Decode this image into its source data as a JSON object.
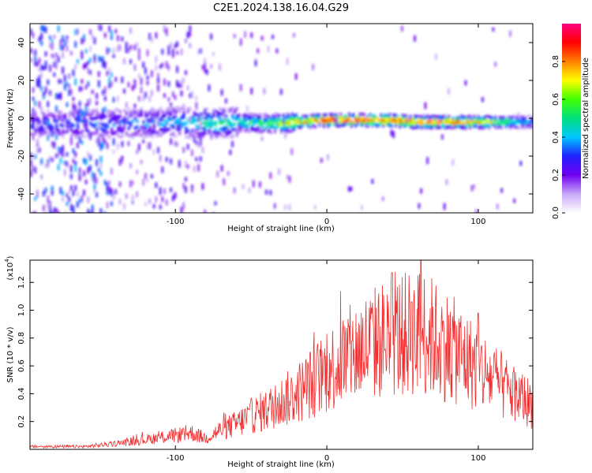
{
  "title": "C2E1.2024.138.16.04.G29",
  "colors": {
    "snr_line": "#f03030",
    "axis": "#000000",
    "background": "#ffffff"
  },
  "chart_data": [
    {
      "type": "heatmap",
      "xlabel": "Height of straight line (km)",
      "ylabel": "Frequency (Hz)",
      "xlim": [
        -196,
        136
      ],
      "ylim": [
        -50,
        50
      ],
      "x_ticks": [
        -100,
        0,
        100
      ],
      "x_tick_labels": [
        "-100",
        "0",
        "100"
      ],
      "y_ticks": [
        -40,
        -20,
        0,
        20,
        40
      ],
      "y_tick_labels": [
        "-40",
        "-20",
        "0",
        "20",
        "40"
      ],
      "colorbar": {
        "label": "Normalized spectral amplitude",
        "range": [
          0,
          1
        ],
        "ticks": [
          0.0,
          0.2,
          0.4,
          0.6,
          0.8
        ],
        "tick_labels": [
          "0.0",
          "0.2",
          "0.4",
          "0.6",
          "0.8"
        ],
        "colormap": [
          "#ffffff",
          "#c8a8f8",
          "#7000f0",
          "#2020ff",
          "#00c8ff",
          "#00e080",
          "#40ff00",
          "#ffff00",
          "#ff8000",
          "#ff0000",
          "#ff0080"
        ]
      },
      "ridge": {
        "x": [
          -196,
          -150,
          -100,
          -80,
          -60,
          -40,
          -20,
          0,
          20,
          40,
          60,
          80,
          100,
          120,
          136
        ],
        "frequency": [
          -3,
          -3,
          -2,
          -3,
          -2,
          -3,
          -2,
          -1,
          -1,
          -1,
          -2,
          -2,
          -2,
          -2,
          -2
        ],
        "peak_amplitude": [
          0.3,
          0.35,
          0.4,
          0.5,
          0.5,
          0.55,
          0.8,
          0.95,
          0.95,
          0.9,
          0.9,
          0.85,
          0.8,
          0.55,
          0.4
        ]
      },
      "grid": false
    },
    {
      "type": "line",
      "xlabel": "Height of straight line (km)",
      "ylabel": "SNR (10 * v/v)",
      "y_scale_label": "(x10",
      "y_scale_exponent": "4",
      "y_scale_suffix": ")",
      "xlim": [
        -196,
        136
      ],
      "ylim": [
        0,
        1.36
      ],
      "x_ticks": [
        -100,
        0,
        100
      ],
      "x_tick_labels": [
        "-100",
        "0",
        "100"
      ],
      "y_ticks": [
        0.2,
        0.4,
        0.6,
        0.8,
        1.0,
        1.2
      ],
      "y_tick_labels": [
        "0.2",
        "0.4",
        "0.6",
        "0.8",
        "1.0",
        "1.2"
      ],
      "series": [
        {
          "x": [
            -196,
            -180,
            -160,
            -140,
            -120,
            -100,
            -90,
            -80,
            -70,
            -60,
            -50,
            -40,
            -30,
            -20,
            -10,
            0,
            10,
            20,
            30,
            40,
            50,
            60,
            62,
            70,
            80,
            90,
            100,
            110,
            120,
            130,
            136
          ],
          "y": [
            0.02,
            0.02,
            0.02,
            0.04,
            0.07,
            0.1,
            0.12,
            0.08,
            0.14,
            0.18,
            0.24,
            0.28,
            0.34,
            0.4,
            0.48,
            0.56,
            0.64,
            0.7,
            0.76,
            0.8,
            0.82,
            0.84,
            0.86,
            0.8,
            0.74,
            0.66,
            0.58,
            0.5,
            0.42,
            0.36,
            0.32
          ],
          "peaks": [
            {
              "x": 43,
              "y": 1.27
            },
            {
              "x": 62,
              "y": 1.36
            },
            {
              "x": 56,
              "y": 1.06
            },
            {
              "x": 100,
              "y": 0.98
            }
          ]
        }
      ],
      "grid": false
    }
  ]
}
